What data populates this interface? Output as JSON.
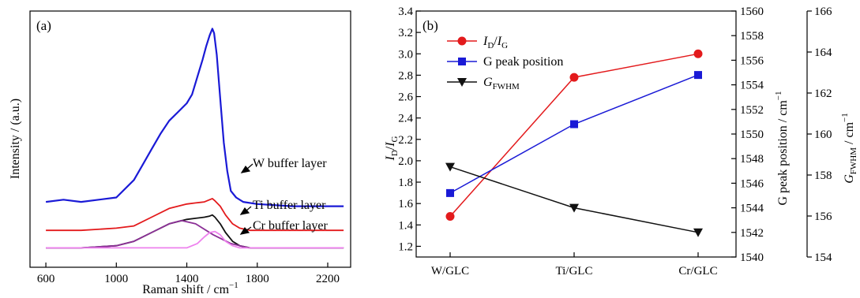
{
  "chart_data": [
    {
      "type": "line",
      "panel_label": "(a)",
      "xlabel_main": "Raman shift / cm",
      "xlabel_sup": "−1",
      "ylabel": "Intensity / (a.u.)",
      "xlim": [
        510,
        2330
      ],
      "xticks": [
        600,
        1000,
        1400,
        1800,
        2200
      ],
      "series": [
        {
          "label": "W buffer layer",
          "color": "#1a1ad6",
          "x": [
            600,
            700,
            800,
            900,
            1000,
            1100,
            1150,
            1200,
            1250,
            1300,
            1350,
            1400,
            1430,
            1460,
            1490,
            1510,
            1530,
            1545,
            1555,
            1570,
            1590,
            1610,
            1630,
            1650,
            1680,
            1720,
            1800,
            2000,
            2290
          ],
          "y": [
            0.23,
            0.24,
            0.23,
            0.24,
            0.25,
            0.33,
            0.4,
            0.47,
            0.54,
            0.6,
            0.64,
            0.68,
            0.72,
            0.8,
            0.88,
            0.94,
            0.99,
            1.02,
            1.0,
            0.9,
            0.7,
            0.5,
            0.37,
            0.28,
            0.25,
            0.23,
            0.22,
            0.21,
            0.21
          ]
        },
        {
          "label": "Ti buffer layer",
          "color": "#e31a1c",
          "x": [
            600,
            800,
            1000,
            1100,
            1200,
            1300,
            1400,
            1450,
            1500,
            1530,
            1545,
            1560,
            1590,
            1620,
            1660,
            1700,
            1760,
            1800,
            2000,
            2290
          ],
          "y": [
            0.1,
            0.1,
            0.11,
            0.12,
            0.16,
            0.2,
            0.22,
            0.225,
            0.23,
            0.24,
            0.245,
            0.235,
            0.21,
            0.17,
            0.13,
            0.11,
            0.1,
            0.1,
            0.1,
            0.1
          ]
        },
        {
          "label": "Cr buffer layer",
          "color": "#111111",
          "x": [
            600,
            800,
            1000,
            1100,
            1200,
            1300,
            1400,
            1450,
            1500,
            1530,
            1545,
            1560,
            1590,
            1620,
            1660,
            1700,
            1760,
            1800,
            2000,
            2290
          ],
          "y": [
            0.02,
            0.02,
            0.03,
            0.05,
            0.09,
            0.13,
            0.15,
            0.155,
            0.16,
            0.165,
            0.17,
            0.16,
            0.13,
            0.09,
            0.05,
            0.03,
            0.02,
            0.02,
            0.02,
            0.02
          ]
        },
        {
          "label": "",
          "color": "#8b2f96",
          "x": [
            600,
            800,
            1000,
            1100,
            1200,
            1300,
            1370,
            1450,
            1550,
            1650,
            1750,
            1850,
            2000,
            2290
          ],
          "y": [
            0.02,
            0.02,
            0.03,
            0.05,
            0.09,
            0.13,
            0.145,
            0.13,
            0.08,
            0.04,
            0.02,
            0.02,
            0.02,
            0.02
          ]
        },
        {
          "label": "",
          "color": "#ee82ee",
          "x": [
            600,
            1000,
            1400,
            1460,
            1500,
            1530,
            1560,
            1590,
            1620,
            1660,
            1700,
            2000,
            2290
          ],
          "y": [
            0.02,
            0.02,
            0.02,
            0.04,
            0.07,
            0.09,
            0.095,
            0.08,
            0.05,
            0.03,
            0.02,
            0.02,
            0.02
          ]
        }
      ]
    },
    {
      "type": "line",
      "panel_label": "(b)",
      "categories": [
        "W/GLC",
        "Ti/GLC",
        "Cr/GLC"
      ],
      "left_axis": {
        "label_main": "I",
        "label_sub1": "D",
        "label_slash": "/",
        "label_main2": "I",
        "label_sub2": "G",
        "ylim": [
          1.1,
          3.4
        ],
        "ticks": [
          "1.2",
          "1.4",
          "1.6",
          "1.8",
          "2.0",
          "2.2",
          "2.4",
          "2.6",
          "2.8",
          "3.0",
          "3.2",
          "3.4"
        ]
      },
      "right_axis_1": {
        "label_main": "G peak position / cm",
        "label_sup": "−1",
        "ylim": [
          1540,
          1560
        ],
        "ticks": [
          "1540",
          "1542",
          "1544",
          "1546",
          "1548",
          "1550",
          "1552",
          "1554",
          "1556",
          "1558",
          "1560"
        ]
      },
      "right_axis_2": {
        "label_main": "G",
        "label_sub": "FWHM",
        "label_tail": " / cm",
        "label_sup": "−1",
        "ylim": [
          154,
          166
        ],
        "ticks": [
          "154",
          "156",
          "158",
          "160",
          "162",
          "164",
          "166"
        ]
      },
      "series": [
        {
          "name_main": "I",
          "name_sub1": "D",
          "name_slash": "/",
          "name_main2": "I",
          "name_sub2": "G",
          "axis": "left",
          "color": "#e31a1c",
          "marker": "circle",
          "values": [
            1.48,
            2.78,
            3.0
          ]
        },
        {
          "name_text": "G peak position",
          "axis": "right_1",
          "color": "#1a1ad6",
          "marker": "square",
          "values": [
            1545.2,
            1550.8,
            1554.8
          ]
        },
        {
          "name_main": "G",
          "name_sub": "FWHM",
          "axis": "right_2",
          "color": "#111111",
          "marker": "triangle-down",
          "values": [
            158.4,
            156.4,
            155.2
          ]
        }
      ]
    }
  ]
}
